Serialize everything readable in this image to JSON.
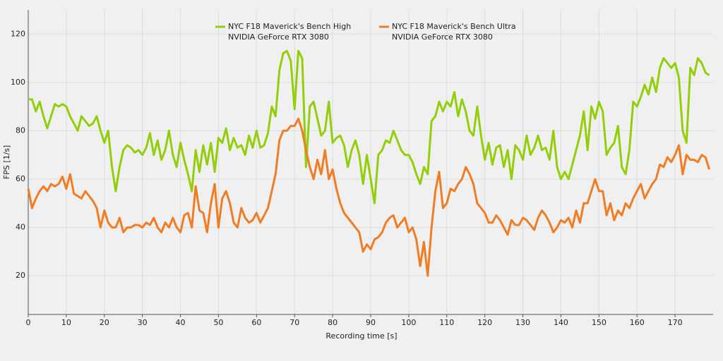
{
  "chart_data": {
    "type": "line",
    "x_label": "Recording time [s]",
    "y_label": "FPS [1/s]",
    "x": [
      0,
      1,
      2,
      3,
      4,
      5,
      6,
      7,
      8,
      9,
      10,
      11,
      12,
      13,
      14,
      15,
      16,
      17,
      18,
      19,
      20,
      21,
      22,
      23,
      24,
      25,
      26,
      27,
      28,
      29,
      30,
      31,
      32,
      33,
      34,
      35,
      36,
      37,
      38,
      39,
      40,
      41,
      42,
      43,
      44,
      45,
      46,
      47,
      48,
      49,
      50,
      51,
      52,
      53,
      54,
      55,
      56,
      57,
      58,
      59,
      60,
      61,
      62,
      63,
      64,
      65,
      66,
      67,
      68,
      69,
      70,
      71,
      72,
      73,
      74,
      75,
      76,
      77,
      78,
      79,
      80,
      81,
      82,
      83,
      84,
      85,
      86,
      87,
      88,
      89,
      90,
      91,
      92,
      93,
      94,
      95,
      96,
      97,
      98,
      99,
      100,
      101,
      102,
      103,
      104,
      105,
      106,
      107,
      108,
      109,
      110,
      111,
      112,
      113,
      114,
      115,
      116,
      117,
      118,
      119,
      120,
      121,
      122,
      123,
      124,
      125,
      126,
      127,
      128,
      129,
      130,
      131,
      132,
      133,
      134,
      135,
      136,
      137,
      138,
      139,
      140,
      141,
      142,
      143,
      144,
      145,
      146,
      147,
      148,
      149,
      150,
      151,
      152,
      153,
      154,
      155,
      156,
      157,
      158,
      159,
      160,
      161,
      162,
      163,
      164,
      165,
      166,
      167,
      168,
      169,
      170,
      171,
      172,
      173,
      174,
      175,
      176,
      177,
      178,
      179
    ],
    "series": [
      {
        "name": "NYC F18 Maverick's Bench High",
        "device": "NVIDIA GeForce RTX 3080",
        "color": "#92cf0a",
        "values": [
          93,
          93,
          88,
          92,
          86,
          81,
          86,
          91,
          90,
          91,
          90,
          86,
          83,
          80,
          86,
          84,
          82,
          83,
          86,
          80,
          75,
          80,
          65,
          55,
          65,
          72,
          74,
          73,
          71,
          72,
          70,
          73,
          79,
          70,
          76,
          68,
          72,
          80,
          70,
          65,
          75,
          68,
          62,
          55,
          72,
          63,
          74,
          66,
          75,
          63,
          77,
          75,
          81,
          72,
          77,
          73,
          74,
          70,
          78,
          73,
          80,
          73,
          74,
          79,
          90,
          86,
          105,
          112,
          113,
          109,
          89,
          113,
          110,
          65,
          90,
          92,
          85,
          78,
          80,
          92,
          75,
          77,
          78,
          74,
          65,
          72,
          76,
          70,
          58,
          70,
          60,
          50,
          70,
          72,
          76,
          75,
          80,
          76,
          72,
          70,
          70,
          67,
          62,
          58,
          65,
          62,
          84,
          86,
          92,
          88,
          92,
          90,
          96,
          86,
          93,
          88,
          80,
          78,
          90,
          78,
          68,
          75,
          66,
          73,
          74,
          65,
          72,
          60,
          74,
          72,
          68,
          78,
          70,
          73,
          78,
          72,
          73,
          68,
          80,
          65,
          60,
          63,
          60,
          66,
          72,
          78,
          88,
          72,
          90,
          85,
          92,
          88,
          70,
          73,
          75,
          82,
          65,
          62,
          72,
          92,
          90,
          94,
          99,
          95,
          102,
          96,
          106,
          110,
          108,
          106,
          108,
          102,
          80,
          75,
          106,
          103,
          110,
          108,
          104,
          103
        ]
      },
      {
        "name": "NYC F18 Maverick's Bench Ultra",
        "device": "NVIDIA GeForce RTX 3080",
        "color": "#f07d23",
        "values": [
          56,
          48,
          52,
          55,
          57,
          55,
          58,
          57,
          58,
          61,
          56,
          62,
          54,
          53,
          52,
          55,
          53,
          51,
          48,
          40,
          47,
          42,
          40,
          40,
          44,
          38,
          40,
          40,
          41,
          41,
          40,
          42,
          41,
          44,
          40,
          38,
          42,
          40,
          44,
          40,
          38,
          45,
          46,
          40,
          57,
          47,
          46,
          38,
          50,
          58,
          40,
          52,
          55,
          50,
          42,
          40,
          48,
          44,
          42,
          43,
          46,
          42,
          45,
          48,
          55,
          62,
          76,
          80,
          80,
          82,
          82,
          85,
          80,
          72,
          65,
          60,
          68,
          62,
          72,
          60,
          64,
          56,
          50,
          46,
          44,
          42,
          40,
          38,
          30,
          33,
          31,
          35,
          36,
          38,
          42,
          44,
          45,
          40,
          42,
          44,
          38,
          40,
          35,
          24,
          34,
          20,
          40,
          55,
          63,
          48,
          50,
          56,
          55,
          58,
          60,
          65,
          62,
          58,
          50,
          48,
          46,
          42,
          42,
          45,
          43,
          40,
          37,
          43,
          41,
          41,
          44,
          43,
          41,
          39,
          44,
          47,
          45,
          42,
          38,
          40,
          43,
          42,
          44,
          40,
          47,
          42,
          50,
          50,
          55,
          60,
          55,
          55,
          45,
          50,
          43,
          47,
          45,
          50,
          48,
          52,
          55,
          58,
          52,
          55,
          58,
          60,
          66,
          65,
          69,
          67,
          70,
          74,
          62,
          70,
          68,
          68,
          67,
          70,
          69,
          64
        ]
      }
    ],
    "xlim": [
      0,
      180
    ],
    "ylim": [
      4,
      130
    ],
    "xticks": [
      0,
      10,
      20,
      30,
      40,
      50,
      60,
      70,
      80,
      90,
      100,
      110,
      120,
      130,
      140,
      150,
      160,
      170
    ],
    "yticks": [
      20,
      40,
      60,
      80,
      100,
      120
    ],
    "grid": true
  }
}
